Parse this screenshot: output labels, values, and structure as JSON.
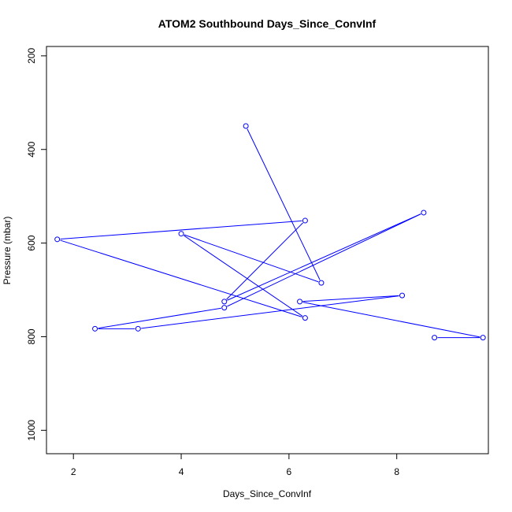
{
  "chart_data": {
    "type": "line",
    "title": "ATOM2 Southbound Days_Since_ConvInf",
    "xlabel": "Days_Since_ConvInf",
    "ylabel": "Pressure (mbar)",
    "xlim": [
      1.5,
      9.7
    ],
    "ylim": [
      1050,
      180
    ],
    "y_reversed": true,
    "x_ticks": [
      2,
      4,
      6,
      8
    ],
    "y_ticks": [
      200,
      400,
      600,
      800,
      1000
    ],
    "grid": false,
    "legend": "none",
    "series": [
      {
        "color": "#0000ff",
        "markers": "open-circle",
        "x": [
          5.2,
          6.6,
          4.0,
          6.3,
          1.7,
          6.3,
          4.8,
          8.5,
          4.8,
          2.4,
          3.2,
          8.1,
          6.2,
          9.6,
          8.7
        ],
        "y": [
          350,
          685,
          580,
          760,
          592,
          552,
          725,
          535,
          738,
          783,
          783,
          712,
          725,
          802,
          802
        ]
      }
    ]
  }
}
